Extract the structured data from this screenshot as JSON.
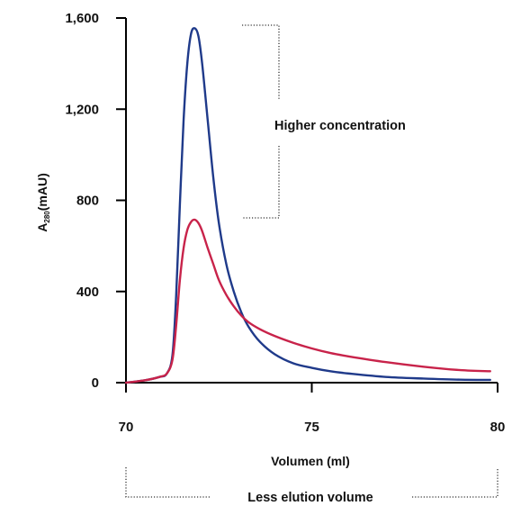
{
  "chart_data": {
    "type": "line",
    "xlabel": "Volumen (ml)",
    "ylabel_main": "A",
    "ylabel_sub": "280",
    "ylabel_unit": "(mAU)",
    "xlim": [
      70,
      80
    ],
    "ylim": [
      0,
      1600
    ],
    "x_ticks": [
      70,
      75,
      80
    ],
    "x_tick_labels": [
      "70",
      "75",
      "80"
    ],
    "y_ticks": [
      0,
      400,
      800,
      1200,
      1600
    ],
    "y_tick_labels": [
      "0",
      "400",
      "800",
      "1,200",
      "1,600"
    ],
    "grid": false,
    "series": [
      {
        "color": "#1f3a8a",
        "x": [
          70,
          70.5,
          70.9,
          71.1,
          71.25,
          71.35,
          71.45,
          71.55,
          71.65,
          71.75,
          71.85,
          71.95,
          72.05,
          72.2,
          72.35,
          72.5,
          72.7,
          72.9,
          73.1,
          73.3,
          73.6,
          74,
          74.5,
          75,
          75.5,
          76,
          77,
          78,
          79,
          79.8
        ],
        "y": [
          0,
          10,
          25,
          40,
          120,
          380,
          780,
          1150,
          1400,
          1530,
          1555,
          1520,
          1400,
          1150,
          900,
          700,
          520,
          400,
          310,
          245,
          180,
          125,
          85,
          65,
          50,
          40,
          25,
          18,
          13,
          12
        ]
      },
      {
        "color": "#c8234a",
        "x": [
          70,
          70.5,
          70.9,
          71.1,
          71.25,
          71.35,
          71.45,
          71.55,
          71.65,
          71.75,
          71.85,
          71.95,
          72.05,
          72.2,
          72.35,
          72.5,
          72.7,
          72.9,
          73.1,
          73.3,
          73.6,
          74,
          74.5,
          75,
          75.5,
          76,
          77,
          78,
          79,
          79.8
        ],
        "y": [
          0,
          10,
          25,
          40,
          100,
          250,
          450,
          590,
          670,
          705,
          715,
          700,
          665,
          590,
          520,
          450,
          385,
          335,
          295,
          265,
          235,
          205,
          175,
          150,
          130,
          115,
          90,
          70,
          55,
          50
        ]
      }
    ],
    "annotations": {
      "y_bracket": "Higher concentration",
      "x_bracket": "Less elution volume"
    }
  }
}
